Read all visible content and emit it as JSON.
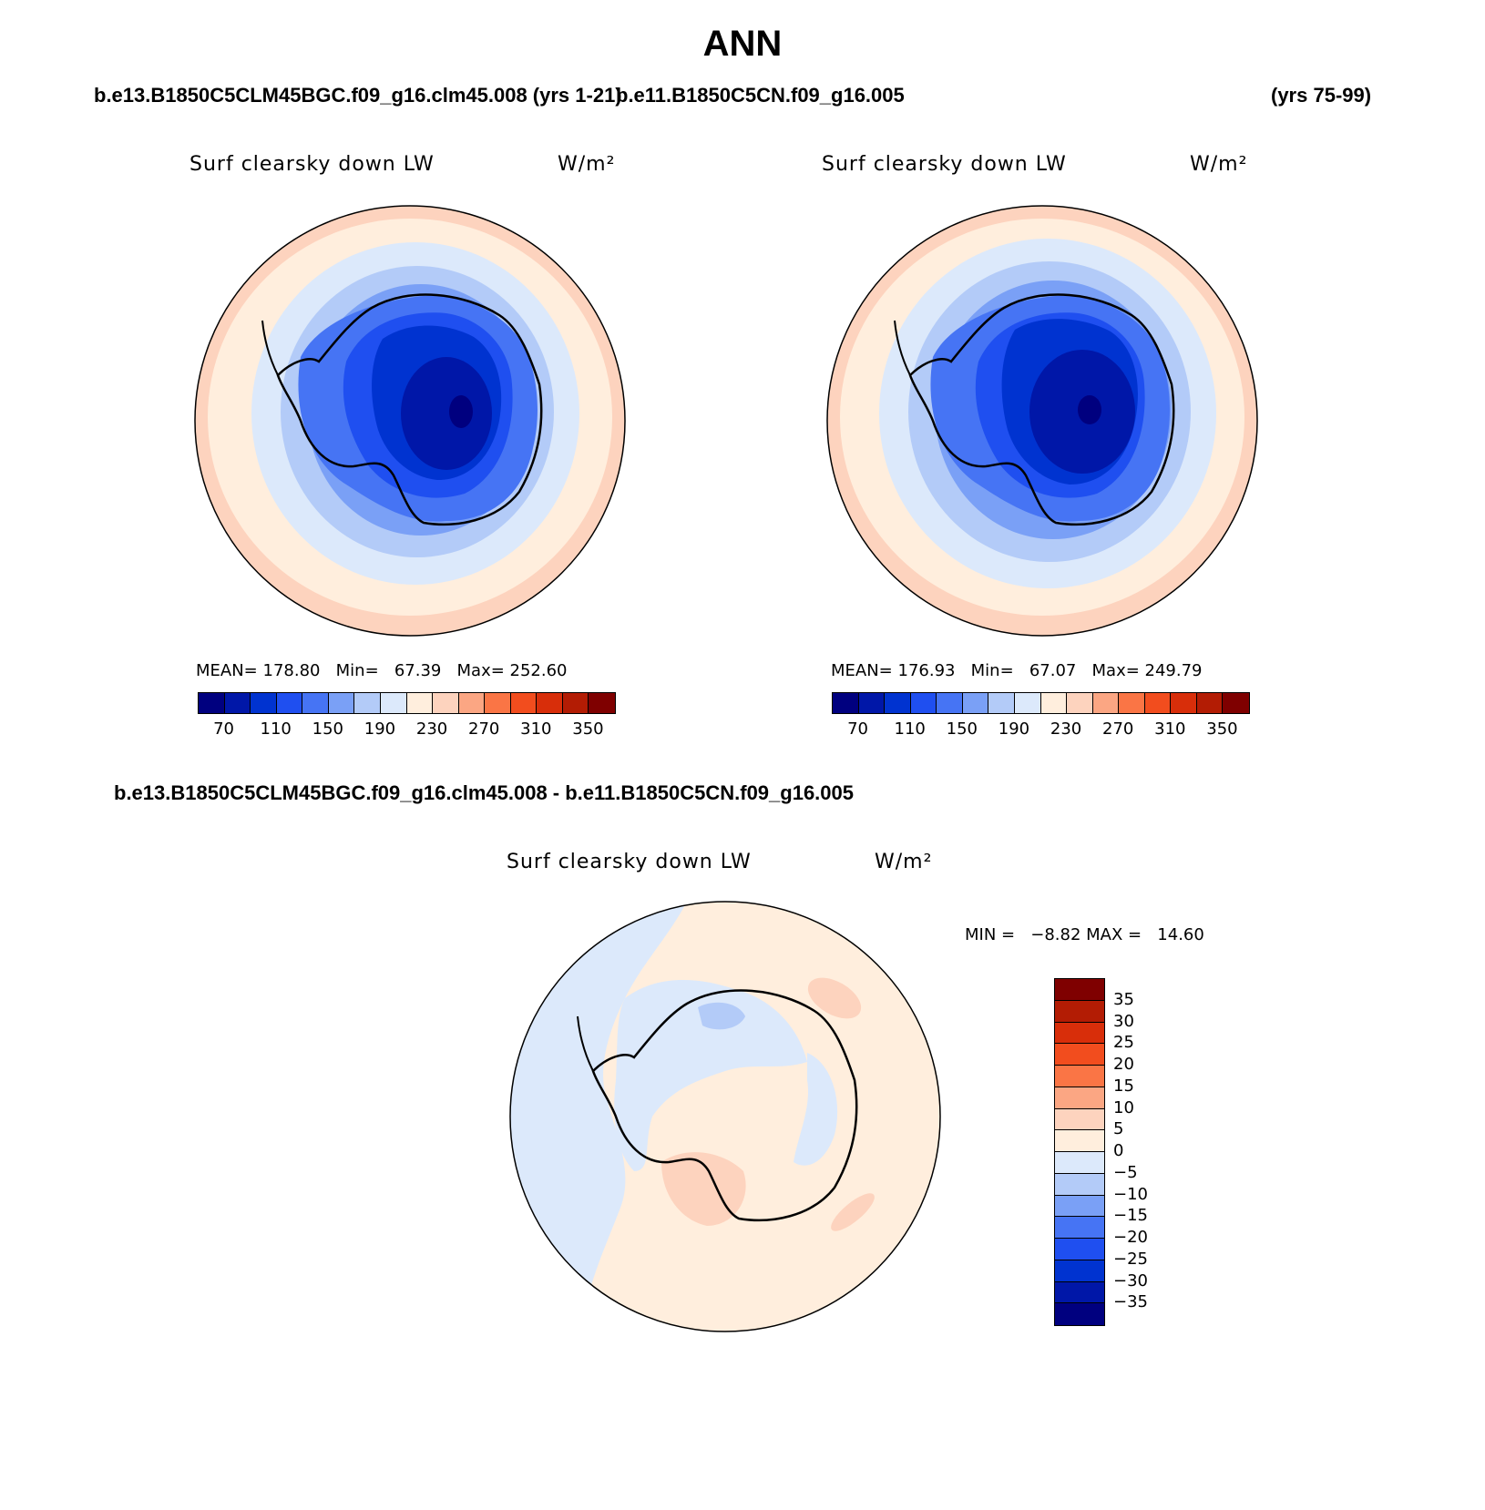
{
  "figure": {
    "season": "ANN",
    "left_case": "b.e13.B1850C5CLM45BGC.f09_g16.clm45.008 (yrs 1-21)",
    "right_case": "b.e11.B1850C5CN.f09_g16.005",
    "right_years": "(yrs 75-99)",
    "diff_case": "b.e13.B1850C5CLM45BGC.f09_g16.clm45.008 - b.e11.B1850C5CN.f09_g16.005"
  },
  "panels": {
    "left": {
      "variable": "Surf clearsky down LW",
      "units": "W/m²",
      "stats": "MEAN= 178.80   Min=   67.39   Max= 252.60"
    },
    "right": {
      "variable": "Surf clearsky down LW",
      "units": "W/m²",
      "stats": "MEAN= 176.93   Min=   67.07   Max= 249.79"
    },
    "diff": {
      "variable": "Surf clearsky down LW",
      "units": "W/m²",
      "stats": "MIN =   −8.82 MAX =   14.60"
    }
  },
  "colorbar_abs": {
    "colors": [
      "#00007f",
      "#0017a8",
      "#0033d0",
      "#1f4ff0",
      "#4674f4",
      "#7aa0f6",
      "#b3cbf8",
      "#dce9fb",
      "#ffeedd",
      "#fdd3be",
      "#fba683",
      "#fa7545",
      "#f24d1e",
      "#d82e0a",
      "#b31c04",
      "#7f0000"
    ],
    "labels": [
      "70",
      "110",
      "150",
      "190",
      "230",
      "270",
      "310",
      "350"
    ]
  },
  "colorbar_diff": {
    "colors": [
      "#7f0000",
      "#b31c04",
      "#d82e0a",
      "#f24d1e",
      "#fa7545",
      "#fba683",
      "#fdd3be",
      "#ffeedd",
      "#dce9fb",
      "#b3cbf8",
      "#7aa0f6",
      "#4674f4",
      "#1f4ff0",
      "#0033d0",
      "#0017a8",
      "#00007f"
    ],
    "labels": [
      "35",
      "30",
      "25",
      "20",
      "15",
      "10",
      "5",
      "0",
      "−5",
      "−10",
      "−15",
      "−20",
      "−25",
      "−30",
      "−35"
    ]
  }
}
